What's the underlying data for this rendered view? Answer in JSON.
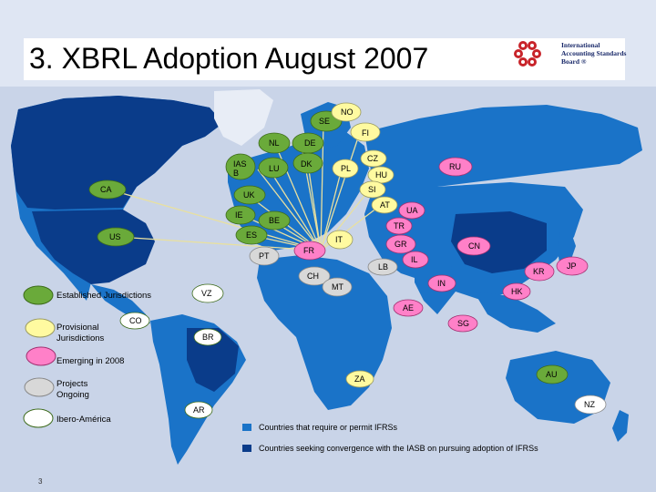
{
  "title": "3. XBRL Adoption August 2007",
  "logo": {
    "line1": "International",
    "line2": "Accounting Standards",
    "line3": "Board ®"
  },
  "colors": {
    "established": "#6aaa3a",
    "provisional": "#fffaa0",
    "emerging": "#ff80c8",
    "projects": "#d8d8d8",
    "ibero": "#ffffff",
    "ifrs_require": "#1a73c8",
    "ifrs_converge": "#0a3c8a"
  },
  "country_labels": {
    "no": "NO",
    "se": "SE",
    "fi": "FI",
    "nl": "NL",
    "de": "DE",
    "dk": "DK",
    "cz": "CZ",
    "ru": "RU",
    "iasb": "IAS\nB",
    "lu": "LU",
    "pl": "PL",
    "hu": "HU",
    "ca": "CA",
    "si": "SI",
    "uk": "UK",
    "at": "AT",
    "ua": "UA",
    "ie": "IE",
    "be": "BE",
    "tr": "TR",
    "us": "US",
    "es": "ES",
    "it": "IT",
    "gr": "GR",
    "cn": "CN",
    "pt": "PT",
    "fr": "FR",
    "il": "IL",
    "lb": "LB",
    "kr": "KR",
    "jp": "JP",
    "ch": "CH",
    "in": "IN",
    "vz": "VZ",
    "mt": "MT",
    "hk": "HK",
    "ae": "AE",
    "co": "CO",
    "sg": "SG",
    "br": "BR",
    "za": "ZA",
    "au": "AU",
    "ar": "AR",
    "nz": "NZ"
  },
  "legend": {
    "established": "Established Jurisdictions",
    "provisional": "Provisional Jurisdictions",
    "emerging": "Emerging in 2008",
    "projects": "Projects Ongoing",
    "ibero": "Ibero-América",
    "require": "Countries that require or permit IFRSs",
    "converge": "Countries seeking convergence with the IASB on pursuing adoption of IFRSs"
  },
  "page_number": "3"
}
